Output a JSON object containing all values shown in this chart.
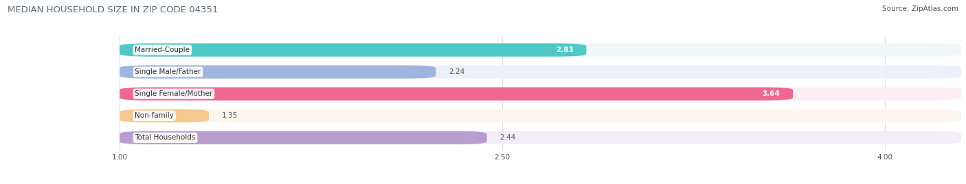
{
  "title": "MEDIAN HOUSEHOLD SIZE IN ZIP CODE 04351",
  "source": "Source: ZipAtlas.com",
  "categories": [
    "Married-Couple",
    "Single Male/Father",
    "Single Female/Mother",
    "Non-family",
    "Total Households"
  ],
  "values": [
    2.83,
    2.24,
    3.64,
    1.35,
    2.44
  ],
  "bar_colors": [
    "#50c8c8",
    "#a0b4e0",
    "#f06890",
    "#f5c890",
    "#b89ed0"
  ],
  "bar_bg_colors": [
    "#eef8f8",
    "#eef0f8",
    "#fdeef4",
    "#fdf6ee",
    "#f2eef8"
  ],
  "xmin": 1.0,
  "xmax": 4.3,
  "xlim_left": 0.55,
  "xticks": [
    1.0,
    2.5,
    4.0
  ],
  "xtick_labels": [
    "1.00",
    "2.50",
    "4.00"
  ],
  "label_fontsize": 7.5,
  "value_fontsize": 7.5,
  "title_fontsize": 9.5,
  "source_fontsize": 7.5,
  "background_color": "#ffffff",
  "value_white_threshold": 2.8,
  "grid_color": "#dddddd",
  "text_color": "#555555",
  "title_color": "#5a6a7a"
}
